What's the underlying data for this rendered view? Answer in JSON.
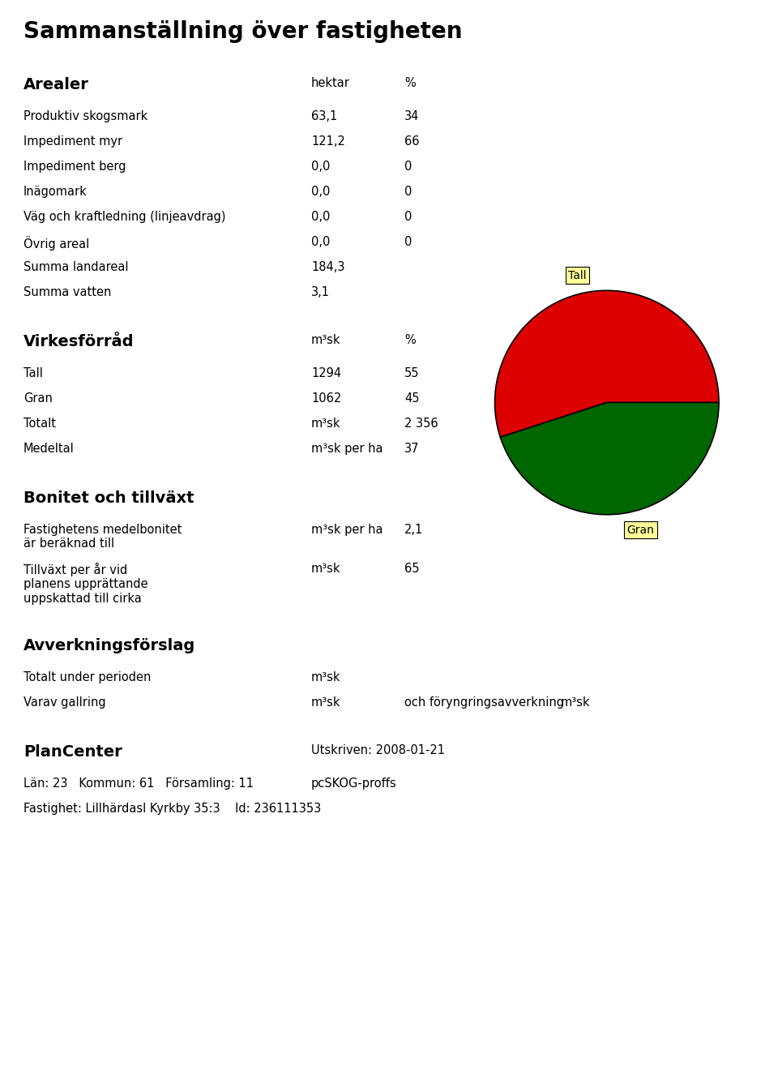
{
  "chart_data": {
    "type": "pie",
    "title": "Sammanställning över fastigheten",
    "categories": [
      "Tall",
      "Gran"
    ],
    "values": [
      55,
      45
    ],
    "colors": [
      "#dd0000",
      "#006600"
    ],
    "annotations": [
      [
        [
          "Arealer",
          "hektar",
          "%"
        ],
        [
          "Produktiv skogsmark",
          "63,1",
          "34"
        ],
        [
          "Impediment myr",
          "121,2",
          "66"
        ],
        [
          "Impediment berg",
          "0,0",
          "0"
        ],
        [
          "Inägomark",
          "0,0",
          "0"
        ],
        [
          "Väg och kraftledning (linjeavdrag)",
          "0,0",
          "0"
        ],
        [
          "Övrig areal",
          "0,0",
          "0"
        ],
        [
          "Summa landareal",
          "184,3"
        ],
        [
          "Summa vatten",
          "3,1"
        ]
      ],
      [
        [
          "Virkesförråd",
          "m³sk",
          "%"
        ],
        [
          "Tall",
          "1294",
          "55"
        ],
        [
          "Gran",
          "1062",
          "45"
        ],
        [
          "Totalt",
          "m³sk",
          "2 356"
        ],
        [
          "Medeltal",
          "m³sk per ha",
          "37"
        ]
      ],
      [
        [
          "Bonitet och tillväxt"
        ],
        [
          "Fastighetens medelbonitet\när beräknad till",
          "m³sk per ha",
          "2,1"
        ],
        [
          "Tillväxt per år vid\nplanens upprättande\nuppskattad till cirka",
          "m³sk",
          "65"
        ]
      ],
      [
        [
          "Avverkningsförslag"
        ],
        [
          "Totalt under perioden",
          "m³sk"
        ],
        [
          "Varav gallring",
          "m³sk",
          "och föryngringsavverkning",
          "m³sk"
        ]
      ],
      [
        [
          "PlanCenter",
          "Utskriven: 2008-01-21"
        ],
        [
          "Län: 23   Kommun: 61   Församling: 11",
          "pcSKOG-proffs"
        ],
        [
          "Fastighet: Lillhärdasl Kyrkby 35:3    Id: 236111353"
        ]
      ]
    ]
  }
}
